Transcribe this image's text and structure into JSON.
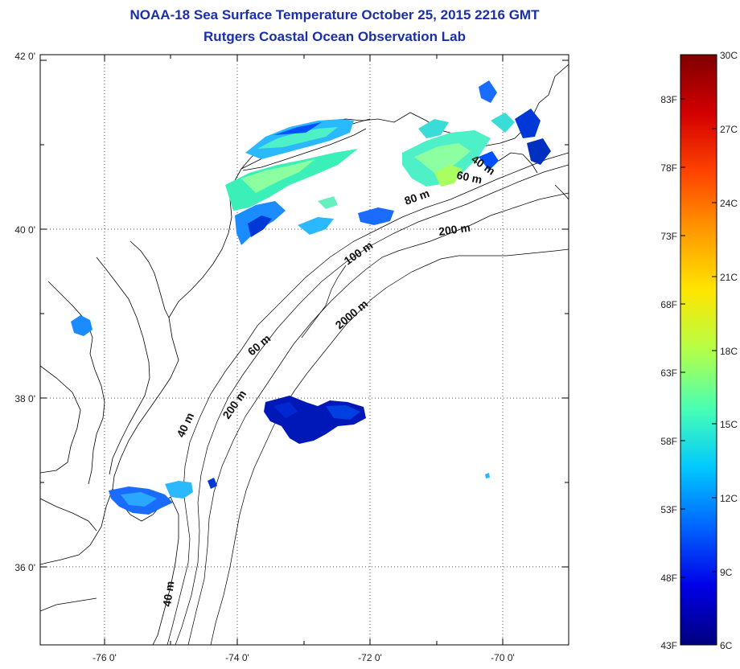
{
  "title": "NOAA-18 Sea Surface Temperature October 25, 2015 2216 GMT",
  "subtitle": "Rutgers Coastal Ocean Observation Lab",
  "lat_labels": [
    "42 0'",
    "40 0'",
    "38 0'",
    "36 0'"
  ],
  "lon_labels": [
    "-76 0'",
    "-74 0'",
    "-72 0'",
    "-70 0'"
  ],
  "contour_labels": [
    "40 m",
    "60 m",
    "80 m",
    "200 m",
    "100 m",
    "2000 m",
    "60 m",
    "200 m",
    "40 m",
    "40 m"
  ],
  "colorbar": {
    "celsius_labels": [
      "30C",
      "27C",
      "24C",
      "21C",
      "18C",
      "15C",
      "12C",
      "9C",
      "6C"
    ],
    "fahrenheit_labels": [
      "83F",
      "78F",
      "73F",
      "68F",
      "63F",
      "58F",
      "53F",
      "48F",
      "43F"
    ],
    "colors": [
      "#7f0000",
      "#d40000",
      "#ff4400",
      "#ff9a00",
      "#ffe600",
      "#b4ff48",
      "#48ffb4",
      "#00c8ff",
      "#0064ff",
      "#0000e6",
      "#00007f"
    ]
  }
}
